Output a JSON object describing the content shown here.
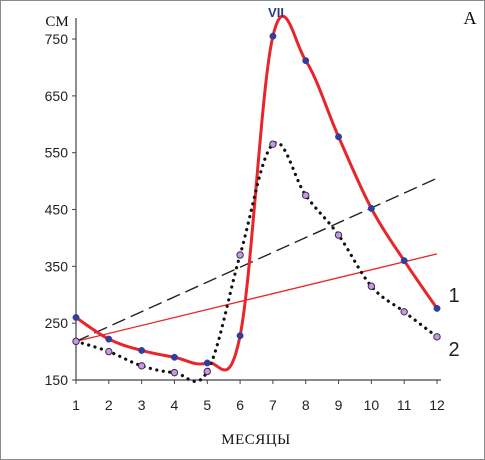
{
  "panel_label": "A",
  "chart_data": {
    "type": "line",
    "ylabel": "СМ",
    "xlabel": "МЕСЯЦЫ",
    "x": [
      1,
      2,
      3,
      4,
      5,
      6,
      7,
      8,
      9,
      10,
      11,
      12
    ],
    "xlim": [
      1,
      12
    ],
    "ylim": [
      150,
      780
    ],
    "yticks": [
      150,
      250,
      350,
      450,
      550,
      650,
      750
    ],
    "annotations": [
      {
        "text": "VII",
        "x": 7
      }
    ],
    "series": [
      {
        "name": "1",
        "style": "solid",
        "color": "#e8252a",
        "values": [
          260,
          222,
          202,
          190,
          180,
          228,
          755,
          712,
          578,
          452,
          360,
          276
        ],
        "trend": [
          218,
          372
        ]
      },
      {
        "name": "2",
        "style": "dotted",
        "color": "#111111",
        "values": [
          218,
          200,
          175,
          163,
          165,
          370,
          565,
          475,
          405,
          315,
          270,
          226
        ],
        "trend": [
          218,
          505
        ]
      }
    ]
  }
}
